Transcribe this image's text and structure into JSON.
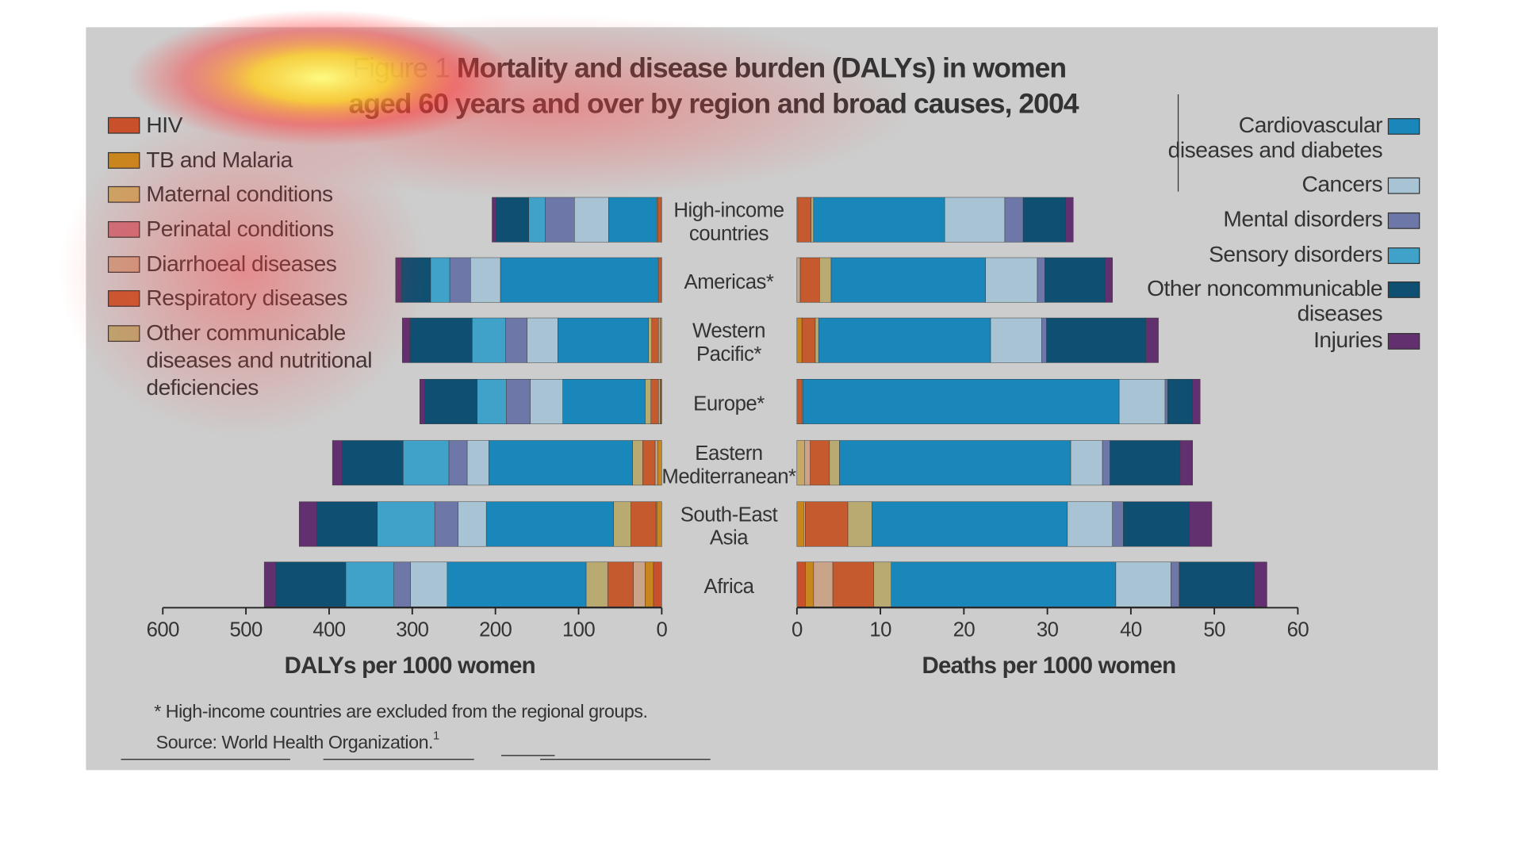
{
  "figure_label": "Figure 1",
  "title": [
    "Mortality and disease burden (DALYs) in women",
    "aged 60 years and over by region and broad causes, 2004"
  ],
  "footnote": "* High-income countries are excluded from the regional groups.",
  "source": "Source: World Health Organization.",
  "source_ref": "1",
  "chart_data": [
    {
      "type": "bar",
      "orientation": "horizontal",
      "x_reversed": true,
      "xlabel": "DALYs per 1000 women",
      "categories": [
        "High-income\ncountries",
        "Americas*",
        "Western\nPacific*",
        "Europe*",
        "Eastern\nMediterranean*",
        "South-East\nAsia",
        "Africa"
      ],
      "xlim": [
        0,
        600
      ],
      "xticks": [
        0,
        100,
        200,
        300,
        400,
        500,
        600
      ],
      "series": [
        {
          "name": "HIV",
          "color": "#c8502a",
          "values": [
            0,
            0,
            0,
            1,
            0,
            0,
            10
          ]
        },
        {
          "name": "TB and Malaria",
          "color": "#c8871e",
          "values": [
            0,
            0,
            2,
            1,
            5,
            6,
            10
          ]
        },
        {
          "name": "Maternal conditions",
          "color": "#c9a866",
          "values": [
            0,
            0,
            0,
            0,
            0,
            0,
            0
          ]
        },
        {
          "name": "Perinatal conditions",
          "color": "#c9727c",
          "values": [
            0,
            0,
            0,
            0,
            0,
            0,
            0
          ]
        },
        {
          "name": "Diarrhoeal diseases",
          "color": "#c9a488",
          "values": [
            1,
            1,
            2,
            2,
            3,
            1,
            14
          ]
        },
        {
          "name": "Respiratory diseases",
          "color": "#c45a2e",
          "values": [
            4,
            3,
            8,
            9,
            15,
            30,
            31
          ]
        },
        {
          "name": "Other communicable\ndiseases and nutritional\ndeficiencies",
          "color": "#b9aa72",
          "values": [
            1,
            1,
            4,
            7,
            12,
            21,
            26
          ]
        },
        {
          "name": "Cardiovascular\ndiseases and diabetes",
          "color": "#1a87bb",
          "values": [
            58,
            189,
            109,
            99,
            173,
            153,
            167
          ]
        },
        {
          "name": "Cancers",
          "color": "#a8c4d4",
          "values": [
            41,
            36,
            37,
            39,
            26,
            34,
            44
          ]
        },
        {
          "name": "Mental disorders",
          "color": "#6d78a8",
          "values": [
            35,
            25,
            26,
            29,
            22,
            28,
            20
          ]
        },
        {
          "name": "Sensory disorders",
          "color": "#40a2c9",
          "values": [
            20,
            23,
            40,
            35,
            55,
            69,
            58
          ]
        },
        {
          "name": "Other noncommunicable\ndiseases",
          "color": "#0f4f72",
          "values": [
            39,
            35,
            75,
            63,
            73,
            73,
            84
          ]
        },
        {
          "name": "Injuries",
          "color": "#62306e",
          "values": [
            5,
            7,
            9,
            6,
            12,
            21,
            14
          ]
        }
      ]
    },
    {
      "type": "bar",
      "orientation": "horizontal",
      "xlabel": "Deaths per 1000 women",
      "xlim": [
        0,
        60
      ],
      "xticks": [
        0,
        10,
        20,
        30,
        40,
        50,
        60
      ],
      "series": [
        {
          "values": [
            0,
            0,
            0,
            0,
            0,
            0,
            1.0
          ]
        },
        {
          "values": [
            0,
            0,
            0.6,
            0,
            0,
            0.8,
            1.0
          ]
        },
        {
          "values": [
            0,
            0,
            0,
            0,
            0.9,
            0,
            0
          ]
        },
        {
          "values": [
            0,
            0,
            0,
            0,
            0,
            0,
            0
          ]
        },
        {
          "values": [
            0.1,
            0.4,
            0,
            0,
            0.7,
            0.2,
            2.3
          ]
        },
        {
          "values": [
            1.6,
            2.3,
            1.6,
            0.6,
            2.3,
            5.1,
            4.9
          ]
        },
        {
          "values": [
            0.3,
            1.4,
            0.4,
            0.1,
            1.2,
            2.9,
            2.1
          ]
        },
        {
          "values": [
            15.7,
            18.5,
            20.6,
            37.9,
            27.7,
            23.4,
            26.9
          ]
        },
        {
          "values": [
            7.2,
            6.2,
            6.1,
            5.5,
            3.8,
            5.4,
            6.6
          ]
        },
        {
          "values": [
            2.2,
            0.9,
            0.6,
            0.3,
            0.9,
            1.3,
            1.0
          ]
        },
        {
          "values": [
            0,
            0,
            0,
            0,
            0,
            0,
            0
          ]
        },
        {
          "values": [
            5.1,
            7.2,
            11.9,
            3.0,
            8.4,
            7.9,
            9.0
          ]
        },
        {
          "values": [
            0.9,
            0.9,
            1.5,
            0.9,
            1.5,
            2.7,
            1.5
          ]
        }
      ]
    }
  ]
}
